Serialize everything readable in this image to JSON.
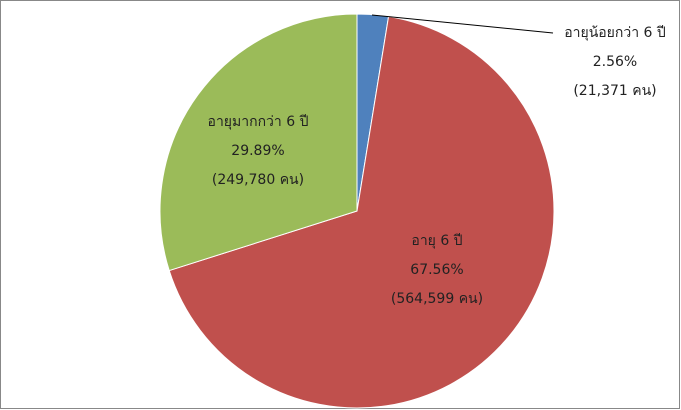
{
  "chart_data": {
    "type": "pie",
    "categories": [
      "อายุน้อยกว่า 6 ปี",
      "อายุ 6 ปี",
      "อายุมากกว่า 6 ปี"
    ],
    "values": [
      2.56,
      67.56,
      29.89
    ],
    "value_labels": [
      "2.56%",
      "67.56%",
      "29.89%"
    ],
    "count_labels": [
      "(21,371 คน)",
      "(564,599 คน)",
      "(249,780 คน)"
    ],
    "colors": [
      "#4f81bd",
      "#c0504d",
      "#9bbb59"
    ]
  }
}
